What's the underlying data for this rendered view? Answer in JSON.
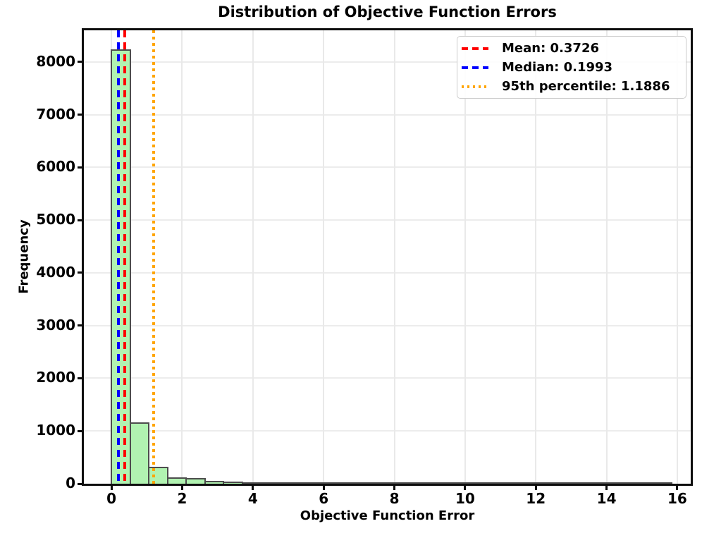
{
  "chart_data": {
    "type": "bar",
    "subtype": "histogram",
    "title": "Distribution of Objective Function Errors",
    "xlabel": "Objective Function Error",
    "ylabel": "Frequency",
    "bin_start": 0,
    "bin_width": 0.528,
    "counts": [
      8220,
      1145,
      305,
      110,
      88,
      46,
      25,
      16,
      10,
      8,
      6,
      4,
      3,
      3,
      2,
      2,
      1,
      1,
      1,
      1,
      1,
      0,
      1,
      0,
      0,
      1,
      0,
      0,
      0,
      1
    ],
    "xticks": [
      0,
      2,
      4,
      6,
      8,
      10,
      12,
      14,
      16
    ],
    "yticks": [
      0,
      1000,
      2000,
      3000,
      4000,
      5000,
      6000,
      7000,
      8000
    ],
    "xlim": [
      -0.78,
      16.38
    ],
    "ylim": [
      0,
      8600
    ],
    "grid": true,
    "legend_position": "upper right",
    "bar_fill_color": "#b1f3b1",
    "bar_edge_color": "#4d4d4d",
    "lines": [
      {
        "name": "mean",
        "x": 0.3726,
        "style": "dashed",
        "color": "#ff0000",
        "label": "Mean: 0.3726"
      },
      {
        "name": "median",
        "x": 0.1993,
        "style": "dashed",
        "color": "#0000ff",
        "label": "Median: 0.1993"
      },
      {
        "name": "p95",
        "x": 1.1886,
        "style": "dotted",
        "color": "#ffa500",
        "label": "95th percentile: 1.1886"
      }
    ]
  }
}
